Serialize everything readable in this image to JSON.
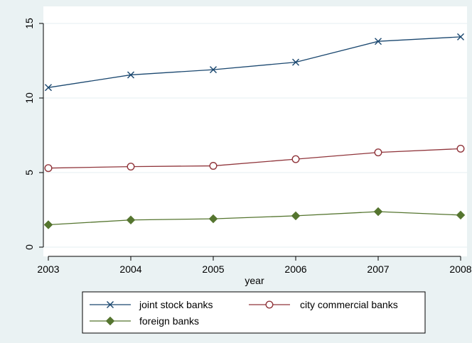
{
  "chart_data": {
    "type": "line",
    "title": "",
    "xlabel": "year",
    "ylabel": "",
    "x": [
      2003,
      2004,
      2005,
      2006,
      2007,
      2008
    ],
    "xlim": [
      2003,
      2008
    ],
    "ylim": [
      0,
      15
    ],
    "x_ticks": [
      "2003",
      "2004",
      "2005",
      "2006",
      "2007",
      "2008"
    ],
    "y_ticks": [
      "0",
      "5",
      "10",
      "15"
    ],
    "grid": "horizontal",
    "legend_position": "bottom",
    "series": [
      {
        "name": "joint stock banks",
        "values": [
          10.7,
          11.55,
          11.9,
          12.4,
          13.8,
          14.1
        ],
        "color": "#1a476f",
        "marker": "x"
      },
      {
        "name": "city commercial banks",
        "values": [
          5.3,
          5.4,
          5.45,
          5.9,
          6.35,
          6.6
        ],
        "color": "#90353b",
        "marker": "circle-open"
      },
      {
        "name": "foreign banks",
        "values": [
          1.5,
          1.82,
          1.9,
          2.1,
          2.38,
          2.15
        ],
        "color": "#55752f",
        "marker": "diamond"
      }
    ]
  },
  "colors": {
    "outer_background": "#eaf2f3",
    "plot_background": "#ffffff",
    "grid": "#eaf2f3",
    "legend_background": "#ffffff"
  }
}
